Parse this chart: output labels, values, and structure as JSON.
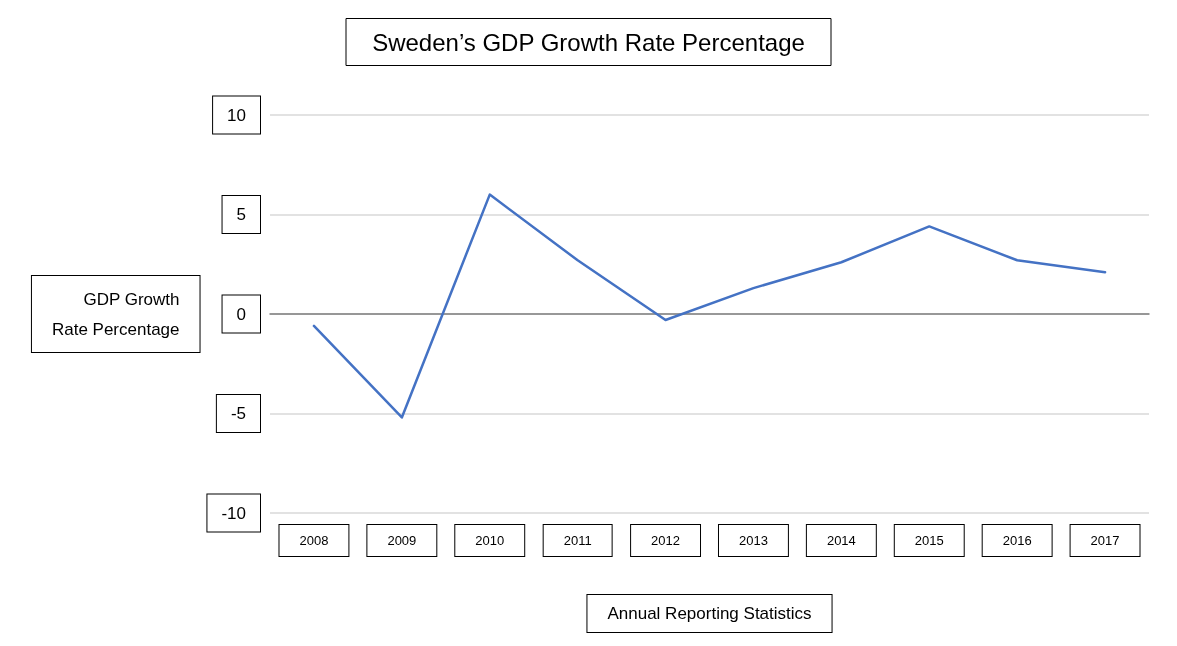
{
  "chart_data": {
    "type": "line",
    "title": "Sweden’s GDP Growth Rate Percentage",
    "xlabel": "Annual Reporting Statistics",
    "ylabel": "GDP Growth\nRate Percentage",
    "categories": [
      "2008",
      "2009",
      "2010",
      "2011",
      "2012",
      "2013",
      "2014",
      "2015",
      "2016",
      "2017"
    ],
    "series": [
      {
        "color": "#4472c4",
        "values": [
          -0.6,
          -5.2,
          6.0,
          2.7,
          -0.3,
          1.3,
          2.6,
          4.4,
          2.7,
          2.1
        ]
      }
    ],
    "ylim": [
      -10,
      10
    ],
    "yticks": [
      -10,
      -5,
      0,
      5,
      10
    ],
    "grid": "y",
    "marker": "none",
    "line_style": "solid"
  }
}
